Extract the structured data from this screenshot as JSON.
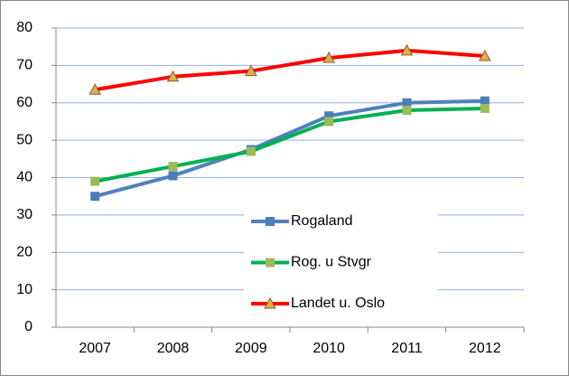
{
  "chart_data": {
    "type": "line",
    "categories": [
      "2007",
      "2008",
      "2009",
      "2010",
      "2011",
      "2012"
    ],
    "series": [
      {
        "name": "Rogaland",
        "color": "#4f81bd",
        "marker": "square",
        "marker_color": "#4a7ebb",
        "values": [
          35,
          40.5,
          47.5,
          56.5,
          60,
          60.5
        ]
      },
      {
        "name": "Rog. u Stvgr",
        "color": "#00b050",
        "marker": "square",
        "marker_color": "#9bbb59",
        "values": [
          39,
          43,
          47,
          55,
          58,
          58.5
        ]
      },
      {
        "name": "Landet u. Oslo",
        "color": "#ff0000",
        "marker": "triangle",
        "marker_color": "#d4b44a",
        "values": [
          63.5,
          67,
          68.5,
          72,
          74,
          72.5
        ]
      }
    ],
    "ylim": [
      0,
      80
    ],
    "yticks": [
      0,
      10,
      20,
      30,
      40,
      50,
      60,
      70,
      80
    ],
    "grid": true,
    "legend": "lower center"
  }
}
